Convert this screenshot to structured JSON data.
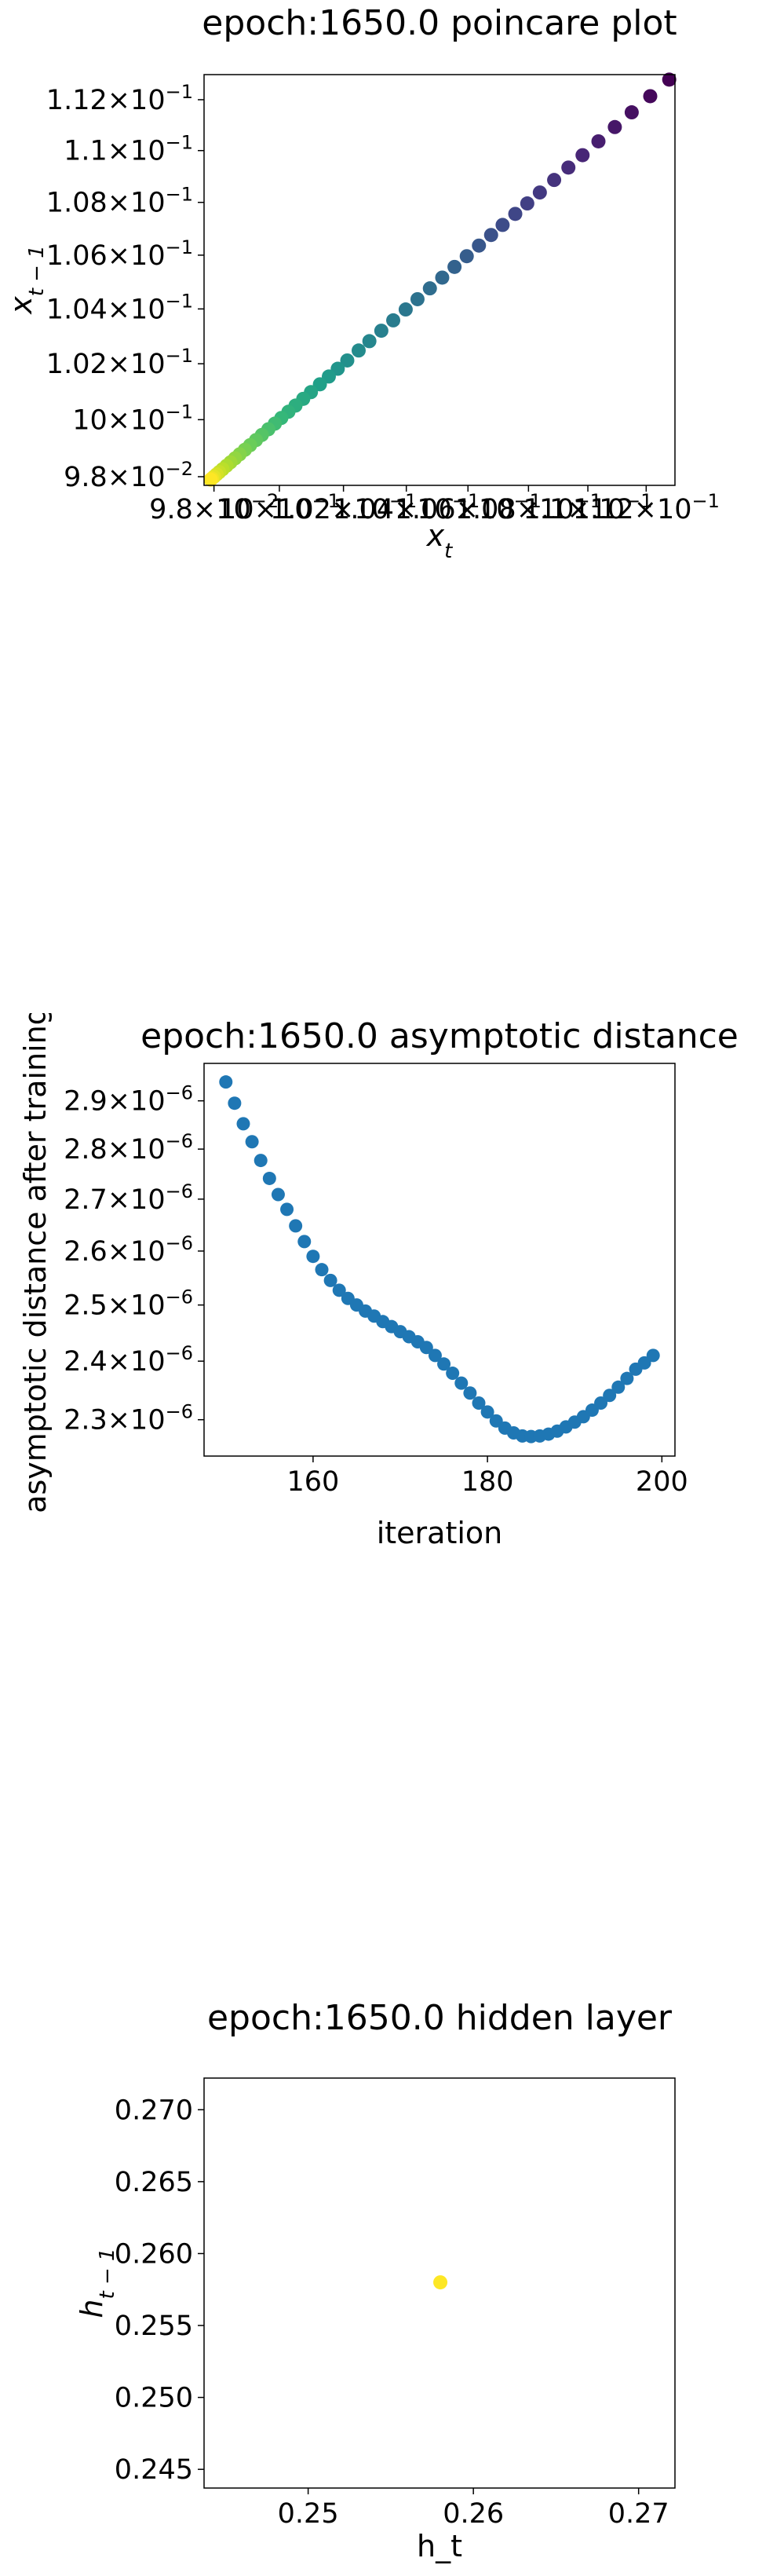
{
  "chart_data": [
    {
      "type": "scatter",
      "title": "epoch:1650.0 poincare plot",
      "xlabel_base": "x",
      "xlabel_sub": "t",
      "ylabel_base": "x",
      "ylabel_sub": "t − 1",
      "scale": "log",
      "xlim": [
        0.0977,
        0.113
      ],
      "ylim": [
        0.0977,
        0.113
      ],
      "x_ticks": [
        {
          "value": 0.098,
          "mant": "9.8",
          "exp": "−2"
        },
        {
          "value": 0.1,
          "mant": "10",
          "exp": "−1"
        },
        {
          "value": 0.102,
          "mant": "1.02",
          "exp": "−1"
        },
        {
          "value": 0.104,
          "mant": "1.04",
          "exp": "−1"
        },
        {
          "value": 0.106,
          "mant": "1.06",
          "exp": "−1"
        },
        {
          "value": 0.108,
          "mant": "1.08",
          "exp": "−1"
        },
        {
          "value": 0.11,
          "mant": "1.1",
          "exp": "−1"
        },
        {
          "value": 0.112,
          "mant": "1.12",
          "exp": "−1"
        }
      ],
      "y_ticks": [
        {
          "value": 0.098,
          "mant": "9.8",
          "exp": "−2"
        },
        {
          "value": 0.1,
          "mant": "10",
          "exp": "−1"
        },
        {
          "value": 0.102,
          "mant": "1.02",
          "exp": "−1"
        },
        {
          "value": 0.104,
          "mant": "1.04",
          "exp": "−1"
        },
        {
          "value": 0.106,
          "mant": "1.06",
          "exp": "−1"
        },
        {
          "value": 0.108,
          "mant": "1.08",
          "exp": "−1"
        },
        {
          "value": 0.11,
          "mant": "1.1",
          "exp": "−1"
        },
        {
          "value": 0.112,
          "mant": "1.12",
          "exp": "−1"
        }
      ],
      "colormap": "viridis",
      "points": [
        [
          0.1128,
          0.1128
        ],
        [
          0.11214,
          0.11214
        ],
        [
          0.1115,
          0.1115
        ],
        [
          0.11092,
          0.11092
        ],
        [
          0.11036,
          0.11036
        ],
        [
          0.10982,
          0.10982
        ],
        [
          0.10934,
          0.10934
        ],
        [
          0.10886,
          0.10886
        ],
        [
          0.10838,
          0.10838
        ],
        [
          0.10796,
          0.10796
        ],
        [
          0.10756,
          0.10756
        ],
        [
          0.10714,
          0.10714
        ],
        [
          0.10676,
          0.10676
        ],
        [
          0.10636,
          0.10636
        ],
        [
          0.10596,
          0.10596
        ],
        [
          0.10556,
          0.10556
        ],
        [
          0.10516,
          0.10516
        ],
        [
          0.10476,
          0.10476
        ],
        [
          0.10436,
          0.10436
        ],
        [
          0.10398,
          0.10398
        ],
        [
          0.10358,
          0.10358
        ],
        [
          0.1032,
          0.1032
        ],
        [
          0.10282,
          0.10282
        ],
        [
          0.10248,
          0.10248
        ],
        [
          0.10212,
          0.10212
        ],
        [
          0.10182,
          0.10182
        ],
        [
          0.10154,
          0.10154
        ],
        [
          0.10126,
          0.10126
        ],
        [
          0.10098,
          0.10098
        ],
        [
          0.10074,
          0.10074
        ],
        [
          0.1005,
          0.1005
        ],
        [
          0.10028,
          0.10028
        ],
        [
          0.10006,
          0.10006
        ],
        [
          0.09986,
          0.09986
        ],
        [
          0.09966,
          0.09966
        ],
        [
          0.09946,
          0.09946
        ],
        [
          0.09928,
          0.09928
        ],
        [
          0.0991,
          0.0991
        ],
        [
          0.09894,
          0.09894
        ],
        [
          0.09878,
          0.09878
        ],
        [
          0.09864,
          0.09864
        ],
        [
          0.0985,
          0.0985
        ],
        [
          0.09838,
          0.09838
        ],
        [
          0.09826,
          0.09826
        ],
        [
          0.09816,
          0.09816
        ],
        [
          0.09808,
          0.09808
        ],
        [
          0.098,
          0.098
        ],
        [
          0.09794,
          0.09794
        ],
        [
          0.0979,
          0.0979
        ]
      ]
    },
    {
      "type": "scatter",
      "title": "epoch:1650.0 asymptotic distance",
      "xlabel": "iteration",
      "ylabel": "asymptotic distance after training",
      "y_scale": "log",
      "xlim": [
        147.5,
        201.5
      ],
      "ylim": [
        2.24e-06,
        2.98e-06
      ],
      "x_ticks": [
        {
          "value": 160,
          "label": "160"
        },
        {
          "value": 180,
          "label": "180"
        },
        {
          "value": 200,
          "label": "200"
        }
      ],
      "y_ticks": [
        {
          "value": 2.3e-06,
          "mant": "2.3",
          "exp": "−6"
        },
        {
          "value": 2.4e-06,
          "mant": "2.4",
          "exp": "−6"
        },
        {
          "value": 2.5e-06,
          "mant": "2.5",
          "exp": "−6"
        },
        {
          "value": 2.6e-06,
          "mant": "2.6",
          "exp": "−6"
        },
        {
          "value": 2.7e-06,
          "mant": "2.7",
          "exp": "−6"
        },
        {
          "value": 2.8e-06,
          "mant": "2.8",
          "exp": "−6"
        },
        {
          "value": 2.9e-06,
          "mant": "2.9",
          "exp": "−6"
        }
      ],
      "color": "#1f77b4",
      "x": [
        150,
        151,
        152,
        153,
        154,
        155,
        156,
        157,
        158,
        159,
        160,
        161,
        162,
        163,
        164,
        165,
        166,
        167,
        168,
        169,
        170,
        171,
        172,
        173,
        174,
        175,
        176,
        177,
        178,
        179,
        180,
        181,
        182,
        183,
        184,
        185,
        186,
        187,
        188,
        189,
        190,
        191,
        192,
        193,
        194,
        195,
        196,
        197,
        198,
        199
      ],
      "y": [
        2.94e-06,
        2.895e-06,
        2.852e-06,
        2.815e-06,
        2.777e-06,
        2.741e-06,
        2.709e-06,
        2.68e-06,
        2.648e-06,
        2.618e-06,
        2.59e-06,
        2.565e-06,
        2.545e-06,
        2.527e-06,
        2.512e-06,
        2.5e-06,
        2.489e-06,
        2.48e-06,
        2.47e-06,
        2.461e-06,
        2.452e-06,
        2.443e-06,
        2.434e-06,
        2.424e-06,
        2.41e-06,
        2.395e-06,
        2.379e-06,
        2.362e-06,
        2.345e-06,
        2.328e-06,
        2.313e-06,
        2.298e-06,
        2.286e-06,
        2.278e-06,
        2.273e-06,
        2.272e-06,
        2.273e-06,
        2.276e-06,
        2.281e-06,
        2.288e-06,
        2.296e-06,
        2.305e-06,
        2.316e-06,
        2.328e-06,
        2.341e-06,
        2.355e-06,
        2.37e-06,
        2.386e-06,
        2.397e-06,
        2.41e-06
      ]
    },
    {
      "type": "scatter",
      "title": "epoch:1650.0 hidden layer",
      "xlabel": "h_t",
      "ylabel_base": "h",
      "ylabel_sub": "t − 1",
      "xlim": [
        0.2437,
        0.2722
      ],
      "ylim": [
        0.2437,
        0.2722
      ],
      "x_ticks": [
        {
          "value": 0.25,
          "label": "0.25"
        },
        {
          "value": 0.26,
          "label": "0.26"
        },
        {
          "value": 0.27,
          "label": "0.27"
        }
      ],
      "y_ticks": [
        {
          "value": 0.245,
          "label": "0.245"
        },
        {
          "value": 0.25,
          "label": "0.250"
        },
        {
          "value": 0.255,
          "label": "0.255"
        },
        {
          "value": 0.26,
          "label": "0.260"
        },
        {
          "value": 0.265,
          "label": "0.265"
        },
        {
          "value": 0.27,
          "label": "0.270"
        }
      ],
      "color": "#fde725",
      "points": [
        [
          0.258,
          0.258
        ]
      ]
    }
  ]
}
